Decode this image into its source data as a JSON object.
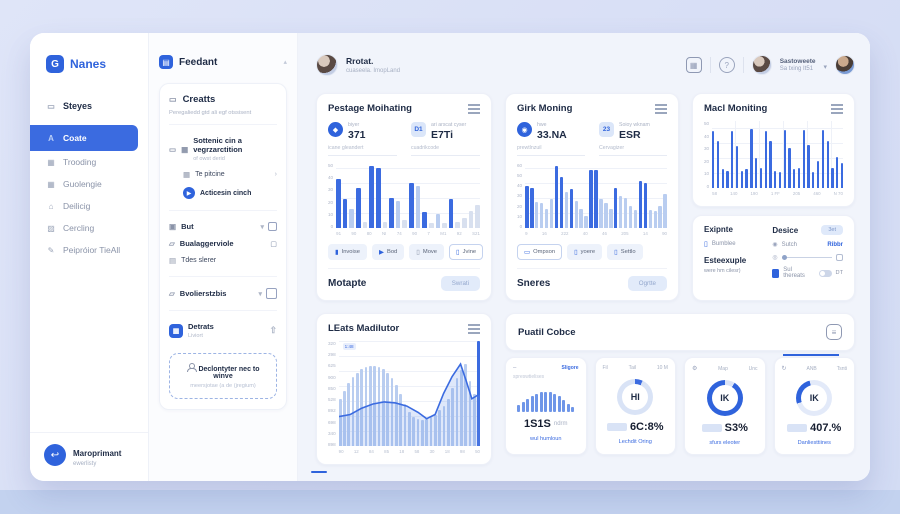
{
  "sidebar": {
    "logo": {
      "text": "Nanes",
      "badge": "G"
    },
    "items": [
      {
        "icon": "▭",
        "label": "Steyes"
      },
      {
        "icon": "A",
        "label": "Coate"
      },
      {
        "icon": "▦",
        "label": "Trooding"
      },
      {
        "icon": "▦",
        "label": "Guolengie"
      },
      {
        "icon": "⌂",
        "label": "Deilicig"
      },
      {
        "icon": "▨",
        "label": "Cercling"
      },
      {
        "icon": "✎",
        "label": "Peipróior TieAll"
      }
    ],
    "footer": {
      "icon": "↩",
      "title": "Maroprimant",
      "subtitle": "ewerlisty"
    }
  },
  "panel": {
    "title": "Feedant",
    "badge": "▤",
    "tree": {
      "head": {
        "icon": "▭",
        "title": "Creatts",
        "subtitle": "Peregaliedd gtd ali egf otssisent"
      },
      "items": [
        {
          "label": "Sottenic cin a vegrzarctition",
          "sub": "of owst derid"
        },
        {
          "label": "Te pitcine"
        },
        {
          "label": "Acticesin cinch"
        },
        {
          "label": "But"
        },
        {
          "label": "Bualaggerviole"
        },
        {
          "label": "Tdes slerer"
        },
        {
          "label": "Bvolierstzbis"
        },
        {
          "label": "Detrats",
          "sub": "Liviort"
        }
      ],
      "cta": {
        "label": "Declontyter nec to winve",
        "sub": "meersjotae (a de (jregium)"
      }
    }
  },
  "topbar": {
    "user": {
      "name": "Rrotat.",
      "subtitle": "cuaseela. ImopLand"
    },
    "account": {
      "name": "Sastoweete",
      "subtitle": "Sa txing It51"
    }
  },
  "cards": {
    "a": {
      "title": "Pestage Moihating",
      "stats": [
        {
          "icon": "◆",
          "label": "biyer",
          "value": "371",
          "sub": "icane gleandert"
        },
        {
          "icon": "D1",
          "label": "ari arscat cyser",
          "value": "E7Ti",
          "sub": "cuadrikcode"
        }
      ],
      "chips": [
        "Invoise",
        "Bod",
        "Move",
        "Jvine"
      ],
      "footer": {
        "title": "Motapte",
        "button": "Swrati"
      }
    },
    "b": {
      "title": "Girk Moning",
      "stats": [
        {
          "icon": "◉",
          "label": "hwe",
          "value": "33.NA",
          "sub": "prewtlnzuil"
        },
        {
          "icon": "23",
          "label": "Soioy wknam",
          "value": "ESR",
          "sub": "Cervagizer"
        }
      ],
      "chips": [
        "Ompson",
        "yoere",
        "Settlo"
      ],
      "footer": {
        "title": "Sneres",
        "button": "Ogrtte"
      }
    },
    "c": {
      "title": "Macl Moniting"
    },
    "d": {
      "left": {
        "title": "Exipnte",
        "item": "Bumblee",
        "title2": "Esteexuple",
        "sub2": "were hm cilesr)"
      },
      "right": {
        "title": "Desice",
        "button": "3et",
        "row1_label": "Sutch",
        "row1_value": "Ribbr",
        "row3": "Sul thereats",
        "toggle": "DT"
      }
    },
    "e": {
      "title": "LEats Madilutor",
      "annotation": "1:48"
    },
    "f": {
      "title": "Puatil Cobce",
      "kpis": [
        {
          "header_link": "Sligore",
          "sub": "spreswtielises",
          "value": "1S1S",
          "unit": "ndrm",
          "link": "wul humloun"
        },
        {
          "tab1": "Fil",
          "tab2": "Tail",
          "tab3": "10 M",
          "center": "HI",
          "value": "6C:8%",
          "link": "Lechdit Oring"
        },
        {
          "tab1": "",
          "tab2": "Map",
          "tab3": "Unc",
          "center": "IK",
          "value": "S3%",
          "link": "sfurs eleoter"
        },
        {
          "tab1": "",
          "tab2": "ANB",
          "tab3": "Tsnti",
          "center": "IK",
          "value": "407.%",
          "link": "Danliesttiines"
        }
      ]
    }
  },
  "chart_data": {
    "chartA": {
      "type": "bar",
      "bars": [
        [
          75,
          "d"
        ],
        [
          45,
          "d"
        ],
        [
          30,
          "l"
        ],
        [
          62,
          "d"
        ],
        [
          10,
          "g"
        ],
        [
          95,
          "d"
        ],
        [
          92,
          "d"
        ],
        [
          10,
          "g"
        ],
        [
          46,
          "d"
        ],
        [
          42,
          "l"
        ],
        [
          12,
          "g"
        ],
        [
          70,
          "d"
        ],
        [
          64,
          "l"
        ],
        [
          25,
          "d"
        ],
        [
          8,
          "g"
        ],
        [
          22,
          "l"
        ],
        [
          8,
          "g"
        ],
        [
          45,
          "d"
        ],
        [
          10,
          "g"
        ],
        [
          16,
          "g"
        ],
        [
          26,
          "g"
        ],
        [
          36,
          "g"
        ]
      ],
      "y": [
        "50",
        "40",
        "30",
        "20",
        "10",
        "0"
      ],
      "x": [
        "91",
        "90",
        "80",
        "NI",
        "74",
        "90",
        "7",
        "M1",
        "92",
        "S21"
      ]
    },
    "chartB": {
      "type": "bar",
      "bars": [
        [
          65,
          "d"
        ],
        [
          62,
          "d"
        ],
        [
          40,
          "l"
        ],
        [
          38,
          "l"
        ],
        [
          30,
          "l"
        ],
        [
          45,
          "l"
        ],
        [
          95,
          "d"
        ],
        [
          78,
          "d"
        ],
        [
          55,
          "l"
        ],
        [
          60,
          "d"
        ],
        [
          42,
          "l"
        ],
        [
          30,
          "l"
        ],
        [
          18,
          "l"
        ],
        [
          90,
          "d"
        ],
        [
          90,
          "d"
        ],
        [
          45,
          "l"
        ],
        [
          38,
          "l"
        ],
        [
          30,
          "l"
        ],
        [
          62,
          "d"
        ],
        [
          50,
          "l"
        ],
        [
          46,
          "l"
        ],
        [
          34,
          "l"
        ],
        [
          28,
          "l"
        ],
        [
          72,
          "d"
        ],
        [
          70,
          "d"
        ],
        [
          28,
          "l"
        ],
        [
          26,
          "l"
        ],
        [
          34,
          "l"
        ],
        [
          52,
          "l"
        ]
      ],
      "y": [
        "60",
        "50",
        "40",
        "30",
        "20",
        "10",
        "0"
      ],
      "x": [
        "9",
        "16",
        "222",
        "40",
        "46",
        "205",
        "14",
        "90"
      ]
    },
    "chartC": {
      "type": "bar",
      "bars": [
        [
          85,
          "d"
        ],
        [
          70,
          "d"
        ],
        [
          28,
          "d"
        ],
        [
          25,
          "d"
        ],
        [
          85,
          "d"
        ],
        [
          62,
          "d"
        ],
        [
          25,
          "d"
        ],
        [
          28,
          "d"
        ],
        [
          88,
          "d"
        ],
        [
          45,
          "d"
        ],
        [
          30,
          "d"
        ],
        [
          85,
          "d"
        ],
        [
          70,
          "d"
        ],
        [
          26,
          "d"
        ],
        [
          24,
          "d"
        ],
        [
          86,
          "d"
        ],
        [
          60,
          "d"
        ],
        [
          28,
          "d"
        ],
        [
          30,
          "d"
        ],
        [
          86,
          "d"
        ],
        [
          64,
          "d"
        ],
        [
          24,
          "d"
        ],
        [
          40,
          "d"
        ],
        [
          86,
          "d"
        ],
        [
          70,
          "d"
        ],
        [
          30,
          "d"
        ],
        [
          46,
          "d"
        ],
        [
          38,
          "d"
        ]
      ],
      "y": [
        "50",
        "40",
        "30",
        "20",
        "10",
        "0"
      ],
      "x": [
        "58",
        "140",
        "190",
        "1 FF",
        "205",
        "460",
        "N 70"
      ]
    },
    "chartE": {
      "type": "bar+line",
      "bars": [
        [
          45,
          "l"
        ],
        [
          52,
          "l"
        ],
        [
          60,
          "l"
        ],
        [
          66,
          "l"
        ],
        [
          70,
          "l"
        ],
        [
          73,
          "l"
        ],
        [
          75,
          "l"
        ],
        [
          76,
          "l"
        ],
        [
          76,
          "l"
        ],
        [
          75,
          "l"
        ],
        [
          73,
          "l"
        ],
        [
          70,
          "l"
        ],
        [
          65,
          "l"
        ],
        [
          58,
          "l"
        ],
        [
          50,
          "l"
        ],
        [
          40,
          "l"
        ],
        [
          32,
          "l"
        ],
        [
          28,
          "l"
        ],
        [
          26,
          "l"
        ],
        [
          25,
          "l"
        ],
        [
          26,
          "l"
        ],
        [
          28,
          "l"
        ],
        [
          30,
          "l"
        ],
        [
          34,
          "l"
        ],
        [
          38,
          "l"
        ],
        [
          45,
          "l"
        ],
        [
          55,
          "l"
        ],
        [
          65,
          "l"
        ],
        [
          72,
          "l"
        ],
        [
          78,
          "l"
        ],
        [
          62,
          "l"
        ],
        [
          50,
          "l"
        ],
        [
          100,
          "d"
        ]
      ],
      "line": [
        [
          0,
          72
        ],
        [
          8,
          70
        ],
        [
          16,
          64
        ],
        [
          24,
          60
        ],
        [
          32,
          58
        ],
        [
          40,
          59
        ],
        [
          48,
          62
        ],
        [
          56,
          68
        ],
        [
          62,
          74
        ],
        [
          68,
          70
        ],
        [
          74,
          50
        ],
        [
          80,
          34
        ],
        [
          86,
          22
        ],
        [
          90,
          38
        ],
        [
          94,
          55
        ],
        [
          100,
          50
        ]
      ],
      "y": [
        "320",
        "298",
        "625",
        "900",
        "850",
        "528",
        "892",
        "698",
        "340",
        "898"
      ],
      "x": [
        "90",
        "12",
        "84",
        "85",
        "18",
        "58",
        "30",
        "18",
        "98",
        "50"
      ]
    },
    "kpi1_bars": [
      30,
      42,
      55,
      65,
      75,
      82,
      85,
      83,
      76,
      65,
      50,
      35,
      22
    ],
    "donuts": {
      "k2": [
        [
          "#3b6be0",
          0,
          7
        ],
        [
          "#d9e3f6",
          7,
          100
        ]
      ],
      "k3": [
        [
          "#dbe4f7",
          0,
          9
        ],
        [
          "#2f63dc",
          9,
          100
        ]
      ],
      "k4": [
        [
          "#e3eaf9",
          0,
          70
        ],
        [
          "#2f63dc",
          70,
          96
        ],
        [
          "#e3eaf9",
          96,
          100
        ]
      ]
    }
  }
}
